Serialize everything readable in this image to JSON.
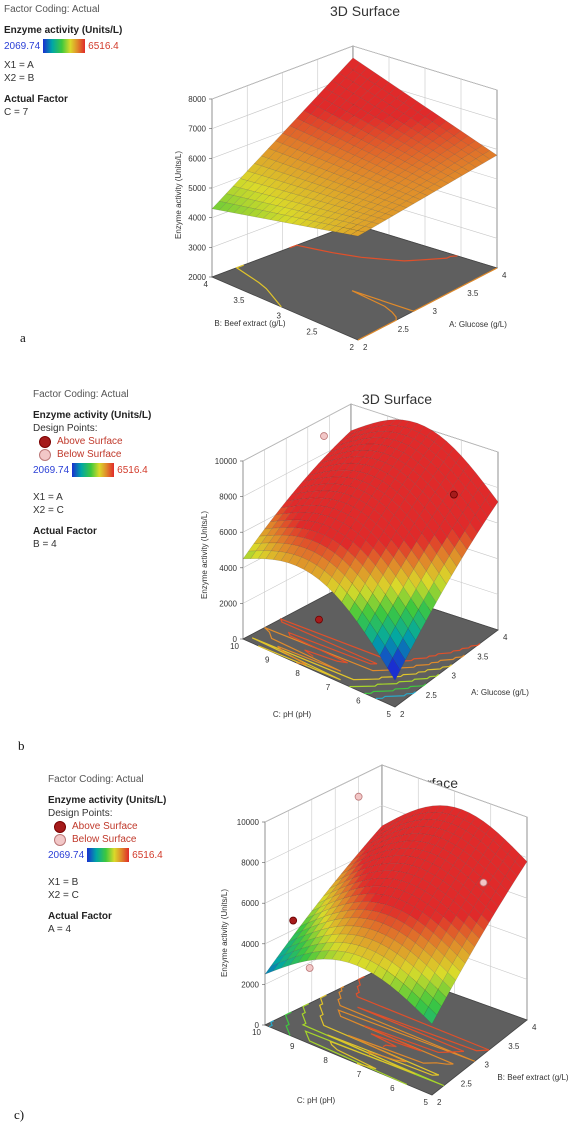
{
  "panels": [
    {
      "factor_coding": "Factor Coding: Actual",
      "response_title": "Enzyme activity (Units/L)",
      "design_points": null,
      "gradient": {
        "min": "2069.74",
        "max": "6516.4"
      },
      "x1": "X1 = A",
      "x2": "X2 = B",
      "actual_factor_title": "Actual Factor",
      "actual_factor_value": "C = 7",
      "plot_title": "3D Surface",
      "panel_label": "a"
    },
    {
      "factor_coding": "Factor Coding: Actual",
      "response_title": "Enzyme activity (Units/L)",
      "design_points": {
        "title": "Design Points:",
        "above": "Above Surface",
        "below": "Below Surface"
      },
      "gradient": {
        "min": "2069.74",
        "max": "6516.4"
      },
      "x1": "X1 = A",
      "x2": "X2 = C",
      "actual_factor_title": "Actual Factor",
      "actual_factor_value": "B = 4",
      "plot_title": "3D Surface",
      "panel_label": "b"
    },
    {
      "factor_coding": "Factor Coding: Actual",
      "response_title": "Enzyme activity (Units/L)",
      "design_points": {
        "title": "Design Points:",
        "above": "Above Surface",
        "below": "Below Surface"
      },
      "gradient": {
        "min": "2069.74",
        "max": "6516.4"
      },
      "x1": "X1 = B",
      "x2": "X2 = C",
      "actual_factor_title": "Actual Factor",
      "actual_factor_value": "A = 4",
      "plot_title": "3D Surface",
      "panel_label": "c)"
    }
  ],
  "colors": {
    "low": "#1a2fd0",
    "mid": "#3ec83e",
    "high": "#e02a2a",
    "floor": "#5f5f5f"
  },
  "chart_data": [
    {
      "type": "surface3d",
      "title": "3D Surface",
      "xlabel": "A: Glucose (g/L)",
      "ylabel": "B: Beef extract (g/L)",
      "zlabel": "Enzyme activity (Units/L)",
      "x_ticks": [
        "2",
        "2.5",
        "3",
        "3.5",
        "4"
      ],
      "y_ticks": [
        "2",
        "2.5",
        "3",
        "3.5",
        "4"
      ],
      "z_ticks": [
        "2000",
        "3000",
        "4000",
        "5000",
        "6000",
        "7000",
        "8000"
      ],
      "xlim": [
        2,
        4
      ],
      "ylim": [
        2,
        4
      ],
      "zlim": [
        2000,
        8000
      ],
      "color_range": [
        2069.74,
        6516.4
      ],
      "surface_corners": {
        "x2_y2": 5500,
        "x4_y2": 5800,
        "x2_y4": 4300,
        "x4_y4": 7600
      },
      "design_points": []
    },
    {
      "type": "surface3d",
      "title": "3D Surface",
      "xlabel": "A: Glucose (g/L)",
      "ylabel": "C: pH (pH)",
      "zlabel": "Enzyme activity (Units/L)",
      "x_ticks": [
        "2",
        "2.5",
        "3",
        "3.5",
        "4"
      ],
      "y_ticks": [
        "5",
        "6",
        "7",
        "8",
        "9",
        "10"
      ],
      "z_ticks": [
        "0",
        "2000",
        "4000",
        "6000",
        "8000",
        "10000"
      ],
      "xlim": [
        2,
        4
      ],
      "ylim": [
        5,
        10
      ],
      "zlim": [
        0,
        10000
      ],
      "color_range": [
        2069.74,
        6516.4
      ],
      "surface_corners": {
        "x2_y5": 1500,
        "x4_y5": 7200,
        "x2_y10": 4500,
        "x4_y10": 8500
      },
      "design_points": [
        {
          "x": 2,
          "y": 7.5,
          "z": 3000,
          "position": "Above Surface"
        },
        {
          "x": 4,
          "y": 6.5,
          "z": 6800,
          "position": "Above Surface"
        },
        {
          "x": 3.5,
          "y": 10,
          "z": 9000,
          "position": "Below Surface"
        }
      ]
    },
    {
      "type": "surface3d",
      "title": "3D Surface",
      "xlabel": "B: Beef extract (g/L)",
      "ylabel": "C: pH (pH)",
      "zlabel": "Enzyme activity (Units/L)",
      "x_ticks": [
        "2",
        "2.5",
        "3",
        "3.5",
        "4"
      ],
      "y_ticks": [
        "5",
        "6",
        "7",
        "8",
        "9",
        "10"
      ],
      "z_ticks": [
        "0",
        "2000",
        "4000",
        "6000",
        "8000",
        "10000"
      ],
      "xlim": [
        2,
        4
      ],
      "ylim": [
        5,
        10
      ],
      "zlim": [
        0,
        10000
      ],
      "color_range": [
        2069.74,
        6516.4
      ],
      "surface_corners": {
        "x2_y5": 3500,
        "x4_y5": 7800,
        "x2_y10": 2500,
        "x4_y10": 7000
      },
      "design_points": [
        {
          "x": 2.2,
          "y": 9.5,
          "z": 5200,
          "position": "Above Surface"
        },
        {
          "x": 2.2,
          "y": 9,
          "z": 3200,
          "position": "Below Surface"
        },
        {
          "x": 3.6,
          "y": 10,
          "z": 9000,
          "position": "Below Surface"
        },
        {
          "x": 4,
          "y": 6.5,
          "z": 6000,
          "position": "Below Surface"
        }
      ]
    }
  ]
}
